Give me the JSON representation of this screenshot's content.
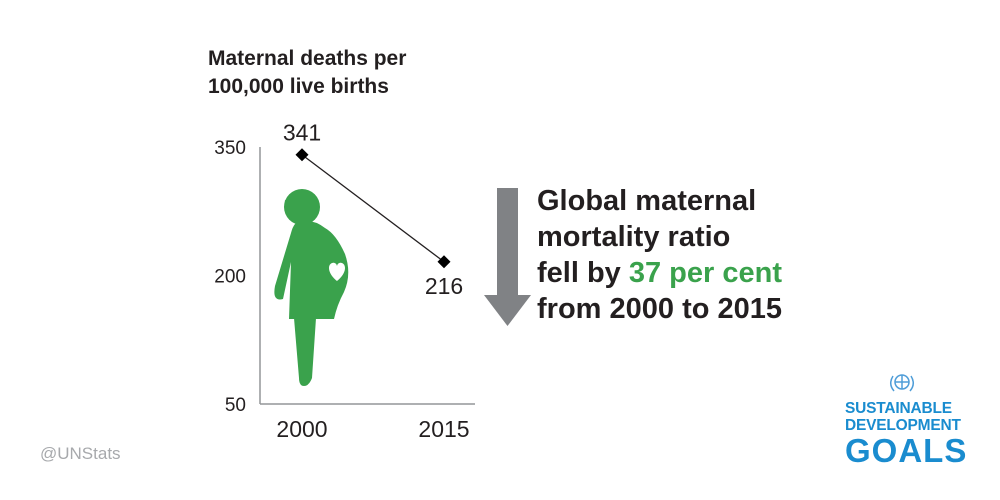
{
  "chart_data": {
    "type": "line",
    "ylabel_lines": [
      "Maternal deaths per",
      "100,000 live births"
    ],
    "ylim": [
      50,
      350
    ],
    "yticks": [
      350,
      200,
      50
    ],
    "categories": [
      "2000",
      "2015"
    ],
    "values": [
      341,
      216
    ],
    "data_labels": [
      "341",
      "216"
    ],
    "grid": false,
    "colors": {
      "line": "#231f20",
      "axis": "#939598",
      "figure": "#3aa24c",
      "arrow": "#808285"
    }
  },
  "headline": {
    "line1": "Global maternal",
    "line2": "mortality ratio",
    "line3_prefix": "fell by ",
    "highlight": "37 per cent",
    "line4": "from 2000 to 2015",
    "highlight_color": "#3aa24c"
  },
  "footer": {
    "handle": "@UNStats"
  },
  "logo": {
    "line1": "SUSTAINABLE",
    "line2": "DEVELOPMENT",
    "line3": "GOALS",
    "color": "#1a8ccf"
  },
  "icons": {
    "pregnant_woman": "pregnant-woman-icon",
    "down_arrow": "down-arrow-icon",
    "un_emblem": "un-emblem-icon"
  }
}
